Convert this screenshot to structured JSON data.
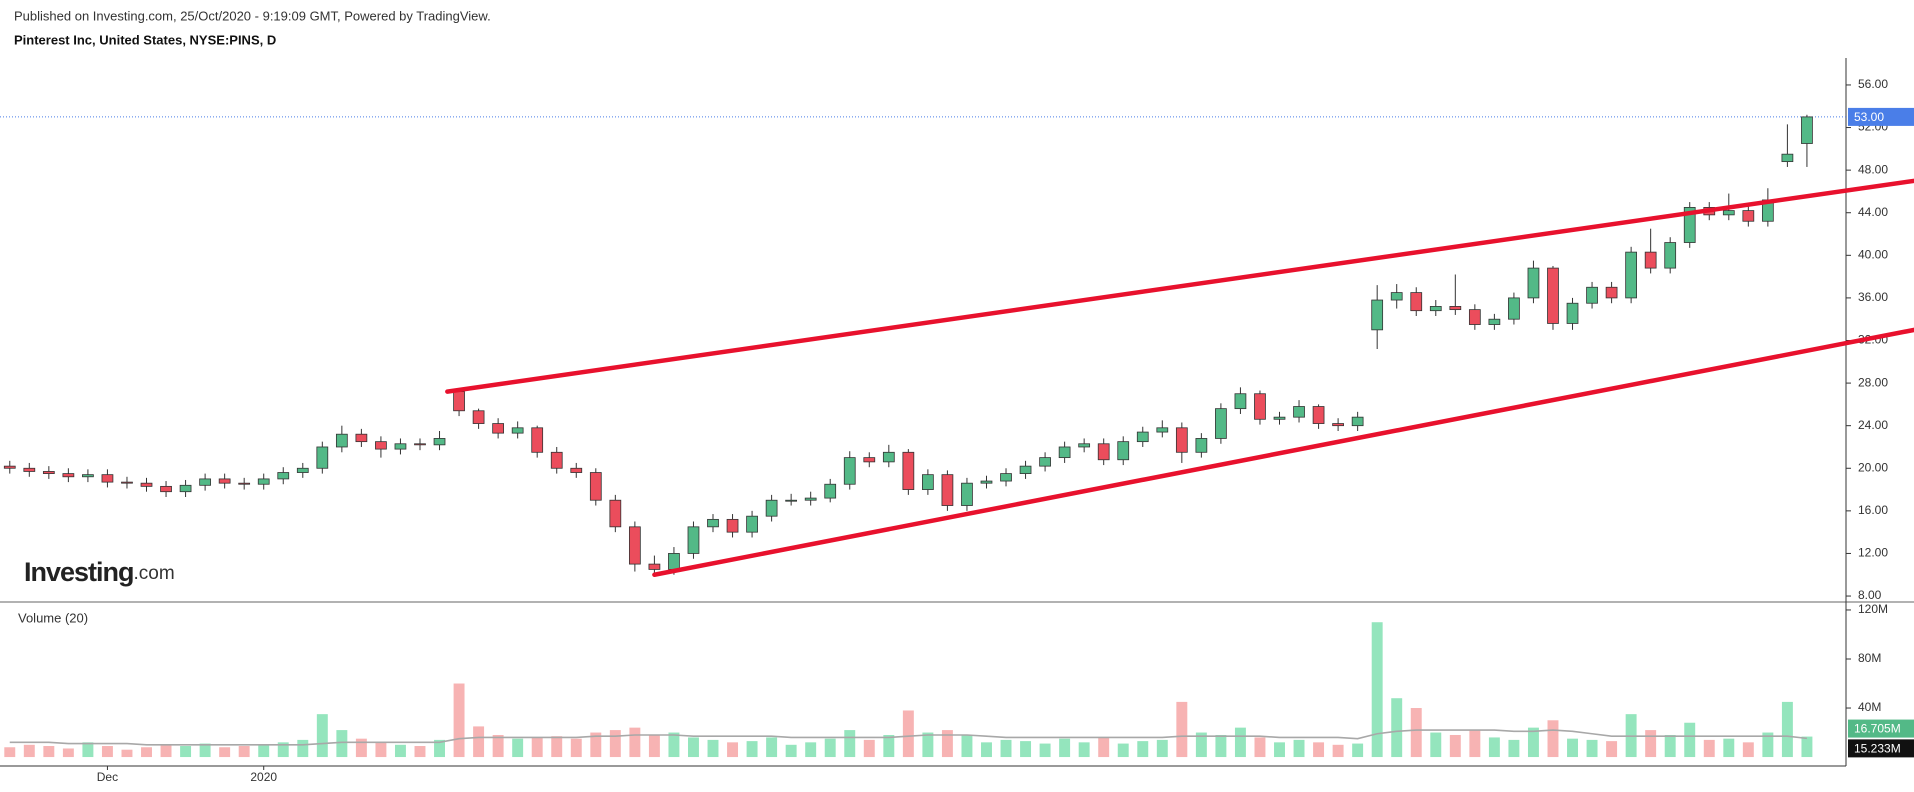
{
  "chart_data": {
    "type": "candlestick",
    "title": "Published on Investing.com, 25/Oct/2020 - 9:19:09 GMT, Powered by TradingView.",
    "subtitle": "Pinterest Inc, United States, NYSE:PINS, D",
    "watermark": {
      "name": "Investing",
      "suffix": ".com"
    },
    "categories": [
      null,
      null,
      null,
      null,
      null,
      "Dec",
      null,
      null,
      null,
      null,
      null,
      null,
      null,
      "2020",
      null,
      null,
      null,
      null,
      null,
      null,
      null,
      null,
      null,
      null,
      null,
      null,
      null,
      null,
      null,
      null,
      null,
      null,
      null,
      null,
      null,
      null,
      null,
      null,
      null,
      null,
      null,
      null,
      null,
      null,
      null,
      null,
      null,
      null,
      null,
      null,
      null,
      null,
      null,
      null,
      null,
      null,
      null,
      null,
      null,
      null,
      null,
      null,
      null,
      null,
      null,
      null,
      null,
      null,
      null,
      null,
      null,
      null,
      null,
      null,
      null,
      null,
      null,
      null,
      null,
      null,
      null,
      null,
      null,
      null,
      null,
      null,
      null,
      null,
      null,
      null,
      null,
      null,
      null
    ],
    "open": [
      20.2,
      20.0,
      19.7,
      19.5,
      19.2,
      19.4,
      18.7,
      18.6,
      18.3,
      17.8,
      18.4,
      19.0,
      18.6,
      18.5,
      19.0,
      19.6,
      20.0,
      22.0,
      23.2,
      22.5,
      21.8,
      22.3,
      22.2,
      27.2,
      25.4,
      24.2,
      23.3,
      23.8,
      21.5,
      20.0,
      19.6,
      17.0,
      14.5,
      11.0,
      10.5,
      12.0,
      14.5,
      15.2,
      14.0,
      15.5,
      17.0,
      17.0,
      17.2,
      18.5,
      21.0,
      20.6,
      21.5,
      18.0,
      19.4,
      16.5,
      18.6,
      18.8,
      19.5,
      20.2,
      21.0,
      22.0,
      22.3,
      20.8,
      22.5,
      23.4,
      23.8,
      21.5,
      22.8,
      25.6,
      27.0,
      24.6,
      24.8,
      25.8,
      24.2,
      24.0,
      33.0,
      35.8,
      36.5,
      34.8,
      35.2,
      34.9,
      33.5,
      34.0,
      36.0,
      38.8,
      33.6,
      35.5,
      37.0,
      36.0,
      40.3,
      38.8,
      41.2,
      44.5,
      43.8,
      44.2,
      43.2,
      48.8,
      50.5
    ],
    "high": [
      20.7,
      20.5,
      20.2,
      20.0,
      19.9,
      19.9,
      19.2,
      19.1,
      18.8,
      18.9,
      19.5,
      19.5,
      19.1,
      19.5,
      20.1,
      20.5,
      22.5,
      24.0,
      23.7,
      23.0,
      22.8,
      22.8,
      23.5,
      27.3,
      25.6,
      24.7,
      24.4,
      24.0,
      22.0,
      20.5,
      20.0,
      17.5,
      15.0,
      11.8,
      12.6,
      15.0,
      15.7,
      15.7,
      16.0,
      17.5,
      17.6,
      17.8,
      19.0,
      21.6,
      21.5,
      22.2,
      21.8,
      19.9,
      19.8,
      19.1,
      19.3,
      20.0,
      20.7,
      21.5,
      22.5,
      22.8,
      22.8,
      23.0,
      23.9,
      24.5,
      24.3,
      23.3,
      26.1,
      27.6,
      27.3,
      25.3,
      26.4,
      26.0,
      24.7,
      25.3,
      37.2,
      37.3,
      37.0,
      35.8,
      38.2,
      35.4,
      34.5,
      36.5,
      39.5,
      39.0,
      36.0,
      37.5,
      37.5,
      40.8,
      42.5,
      41.7,
      45.0,
      45.0,
      45.8,
      44.7,
      46.3,
      52.3,
      53.2
    ],
    "low": [
      19.5,
      19.2,
      19.0,
      18.7,
      18.7,
      18.2,
      18.1,
      17.8,
      17.3,
      17.3,
      17.9,
      18.1,
      18.0,
      18.0,
      18.5,
      19.1,
      19.5,
      21.5,
      22.0,
      21.0,
      21.3,
      21.7,
      21.7,
      24.9,
      23.7,
      22.8,
      22.8,
      21.0,
      19.5,
      19.1,
      16.5,
      14.0,
      10.3,
      9.8,
      10.0,
      11.5,
      14.0,
      13.5,
      13.5,
      15.0,
      16.5,
      16.5,
      16.8,
      18.0,
      20.1,
      20.1,
      17.5,
      17.5,
      16.0,
      16.0,
      18.1,
      18.3,
      19.0,
      19.7,
      20.5,
      21.5,
      20.3,
      20.3,
      22.0,
      22.9,
      20.5,
      21.0,
      22.3,
      25.1,
      24.1,
      24.1,
      24.3,
      23.7,
      23.5,
      23.5,
      31.2,
      35.0,
      34.3,
      34.3,
      34.4,
      33.0,
      33.0,
      33.5,
      35.5,
      33.0,
      33.0,
      35.0,
      35.5,
      35.5,
      38.3,
      38.3,
      40.7,
      43.3,
      43.3,
      42.7,
      42.7,
      48.3,
      48.3
    ],
    "close": [
      20.0,
      19.7,
      19.5,
      19.2,
      19.4,
      18.7,
      18.6,
      18.3,
      17.8,
      18.4,
      19.0,
      18.6,
      18.5,
      19.0,
      19.6,
      20.0,
      22.0,
      23.2,
      22.5,
      21.8,
      22.3,
      22.2,
      22.8,
      25.4,
      24.2,
      23.3,
      23.8,
      21.5,
      20.0,
      19.6,
      17.0,
      14.5,
      11.0,
      10.5,
      12.0,
      14.5,
      15.2,
      14.0,
      15.5,
      17.0,
      17.0,
      17.2,
      18.5,
      21.0,
      20.6,
      21.5,
      18.0,
      19.4,
      16.5,
      18.6,
      18.8,
      19.5,
      20.2,
      21.0,
      22.0,
      22.3,
      20.8,
      22.5,
      23.4,
      23.8,
      21.5,
      22.8,
      25.6,
      27.0,
      24.6,
      24.8,
      25.8,
      24.2,
      24.0,
      24.8,
      35.8,
      36.5,
      34.8,
      35.2,
      34.9,
      33.5,
      34.0,
      36.0,
      38.8,
      33.6,
      35.5,
      37.0,
      36.0,
      40.3,
      38.8,
      41.2,
      44.5,
      43.8,
      44.2,
      43.2,
      45.2,
      49.5,
      53.0
    ],
    "up_color": "#53b987",
    "down_color": "#eb4d5c",
    "xlim": [
      -0.5,
      94.0
    ],
    "ylim": [
      7.44,
      58.25
    ],
    "yticks": [
      {
        "value": 8,
        "label": "8.00"
      },
      {
        "value": 12,
        "label": "12.00"
      },
      {
        "value": 16,
        "label": "16.00"
      },
      {
        "value": 20,
        "label": "20.00"
      },
      {
        "value": 24,
        "label": "24.00"
      },
      {
        "value": 28,
        "label": "28.00"
      },
      {
        "value": 32,
        "label": "32.00"
      },
      {
        "value": 36,
        "label": "36.00"
      },
      {
        "value": 40,
        "label": "40.00"
      },
      {
        "value": 44,
        "label": "44.00"
      },
      {
        "value": 48,
        "label": "48.00"
      },
      {
        "value": 52,
        "label": "52.00"
      },
      {
        "value": 56,
        "label": "56.00"
      }
    ],
    "last_price": {
      "value": 53,
      "label": "53.00",
      "color": "#4a7ee8"
    },
    "trendlines": [
      {
        "x": [
          22.4,
          97.5
        ],
        "y": [
          27.2,
          47.0
        ]
      },
      {
        "x": [
          33.0,
          97.5
        ],
        "y": [
          10.0,
          33.0
        ]
      }
    ],
    "trendline_color": "#e8112d",
    "volume": {
      "label": "Volume (20)",
      "values": [
        8,
        10,
        9,
        7,
        12,
        9,
        6,
        8,
        10,
        9,
        11,
        8,
        9,
        10,
        12,
        14,
        35,
        22,
        15,
        12,
        10,
        9,
        14,
        60,
        25,
        18,
        15,
        16,
        17,
        15,
        20,
        22,
        24,
        18,
        20,
        16,
        14,
        12,
        13,
        16,
        10,
        12,
        15,
        22,
        14,
        18,
        38,
        20,
        22,
        18,
        12,
        14,
        13,
        11,
        15,
        12,
        16,
        11,
        13,
        14,
        45,
        20,
        18,
        24,
        16,
        12,
        14,
        12,
        10,
        11,
        110,
        48,
        40,
        20,
        18,
        22,
        16,
        14,
        24,
        30,
        15,
        14,
        13,
        35,
        22,
        18,
        28,
        14,
        15,
        12,
        20,
        45,
        16.705
      ],
      "ma": [
        12,
        12,
        12,
        11,
        11,
        11,
        11,
        10,
        10,
        10,
        10,
        10,
        10,
        10,
        10,
        10,
        11,
        12,
        12,
        12,
        12,
        12,
        12,
        15,
        16,
        16,
        16,
        16,
        16,
        16,
        17,
        17,
        18,
        18,
        18,
        17,
        17,
        17,
        17,
        17,
        16,
        16,
        16,
        16,
        16,
        16,
        17,
        18,
        18,
        18,
        17,
        16,
        16,
        16,
        16,
        16,
        16,
        16,
        16,
        16,
        17,
        17,
        17,
        17,
        17,
        16,
        16,
        16,
        16,
        15,
        19,
        21,
        22,
        22,
        22,
        22,
        22,
        21,
        21,
        22,
        21,
        19,
        17,
        17,
        17,
        17,
        17,
        17,
        17,
        17,
        17,
        17,
        15.233
      ],
      "up_color": "#94e5bd",
      "down_color": "#f7b3b3",
      "ma_color": "#a8a8a8",
      "ylim": [
        -7.3,
        126.5
      ],
      "yticks": [
        {
          "value": 40,
          "label": "40M"
        },
        {
          "value": 80,
          "label": "80M"
        },
        {
          "value": 120,
          "label": "120M"
        }
      ],
      "last_volume": {
        "value": 16.705,
        "label": "16.705M"
      },
      "last_ma": {
        "value": 15.233,
        "label": "15.233M"
      }
    }
  }
}
